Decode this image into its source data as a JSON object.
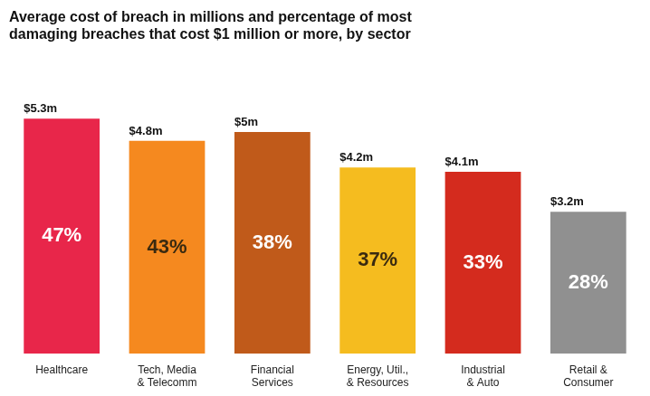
{
  "chart_data": {
    "type": "bar",
    "title": "Average cost of breach in millions and percentage of most\ndamaging breaches that cost $1 million or more, by sector",
    "categories": [
      "Healthcare",
      "Tech, Media\n& Telecomm",
      "Financial\nServices",
      "Energy, Util.,\n& Resources",
      "Industrial\n& Auto",
      "Retail &\nConsumer"
    ],
    "values": [
      5.3,
      4.8,
      5.0,
      4.2,
      4.1,
      3.2
    ],
    "value_labels": [
      "$5.3m",
      "$4.8m",
      "$5m",
      "$4.2m",
      "$4.1m",
      "$3.2m"
    ],
    "data_labels": true,
    "percentages": [
      47,
      43,
      38,
      37,
      33,
      28
    ],
    "percentage_labels": [
      "47%",
      "43%",
      "38%",
      "37%",
      "33%",
      "28%"
    ],
    "colors": [
      "#E8264A",
      "#F5891F",
      "#C05A1A",
      "#F5BC1F",
      "#D42B1E",
      "#909090"
    ],
    "ylim": [
      0,
      6.5
    ],
    "grid": false,
    "tick_labels": "x"
  }
}
